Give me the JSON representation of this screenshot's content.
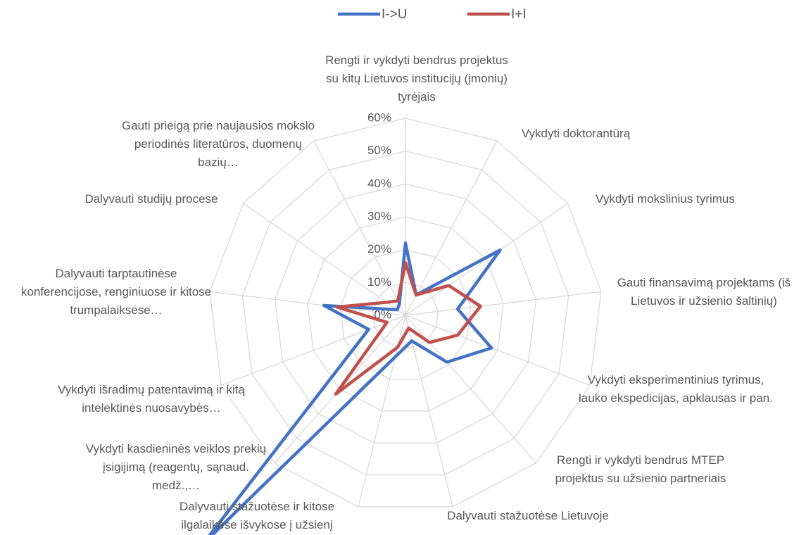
{
  "chart_data": {
    "type": "radar",
    "categories": [
      "Rengti ir vykdyti bendrus projektus su kitų Lietuvos institucijų (įmonių) tyrėjais",
      "Vykdyti doktorantūrą",
      "Vykdyti mokslinius tyrimus",
      "Gauti finansavimą projektams (iš Lietuvos ir užsienio šaltinių)",
      "Vykdyti eksperimentinius tyrimus, lauko ekspedicijas, apklausas ir pan.",
      "Rengti ir vykdyti bendrus MTEP projektus su užsienio partneriais",
      "Dalyvauti stažuotėse Lietuvoje",
      "Dalyvauti stažuotėse ir kitose ilgalaikėse išvykose į užsienį",
      "Vykdyti kasdieninės veiklos prekių įsigijimą (reagentų, sąnaud. medž.,…",
      "Vykdyti išradimų patentavimą ir kitą intelektinės nuosavybės…",
      "Dalyvauti tarptautinėse konferencijose, renginiuose ir kitose trumpalaiksėse…",
      "Dalyvauti studijų procese",
      "Gauti prieigą prie naujausios mokslo periodinės literatūros, duomenų bazių…"
    ],
    "series": [
      {
        "name": "I->U",
        "color": "#4472c4",
        "values": [
          22,
          7,
          35,
          16,
          28,
          19,
          8,
          13,
          93,
          12,
          25,
          3,
          4
        ]
      },
      {
        "name": "I+I",
        "color": "#c0504d",
        "values": [
          16,
          7,
          16,
          23,
          17,
          11,
          4,
          10,
          32,
          6,
          21,
          7,
          5
        ]
      }
    ],
    "ylim": [
      0,
      60
    ],
    "yticks": [
      {
        "value": 0,
        "label": "0%"
      },
      {
        "value": 10,
        "label": "10%"
      },
      {
        "value": 20,
        "label": "20%"
      },
      {
        "value": 30,
        "label": "30%"
      },
      {
        "value": 40,
        "label": "40%"
      },
      {
        "value": 50,
        "label": "50%"
      },
      {
        "value": 60,
        "label": "60%"
      }
    ],
    "grid": true,
    "legend": "top"
  }
}
